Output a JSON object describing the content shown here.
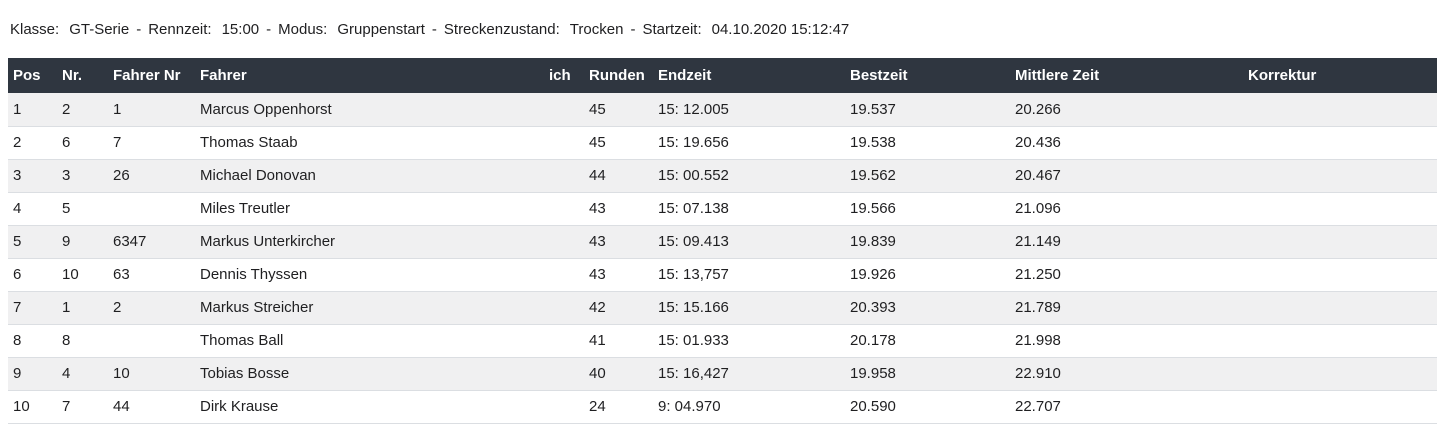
{
  "info": {
    "separator": "-",
    "items": [
      {
        "label": "Klasse:",
        "value": "GT-Serie"
      },
      {
        "label": "Rennzeit:",
        "value": "15:00"
      },
      {
        "label": "Modus:",
        "value": "Gruppenstart"
      },
      {
        "label": "Streckenzustand:",
        "value": "Trocken"
      },
      {
        "label": "Startzeit:",
        "value": "04.10.2020 15:12:47"
      }
    ]
  },
  "table": {
    "columns": [
      {
        "key": "pos",
        "label": "Pos"
      },
      {
        "key": "nr",
        "label": "Nr."
      },
      {
        "key": "fahrer_nr",
        "label": "Fahrer Nr"
      },
      {
        "key": "fahrer",
        "label": "Fahrer"
      },
      {
        "key": "ich",
        "label": "ich"
      },
      {
        "key": "runden",
        "label": "Runden"
      },
      {
        "key": "endzeit",
        "label": "Endzeit"
      },
      {
        "key": "bestzeit",
        "label": "Bestzeit"
      },
      {
        "key": "mittlere_zeit",
        "label": "Mittlere Zeit"
      },
      {
        "key": "korrektur",
        "label": "Korrektur"
      }
    ],
    "rows": [
      {
        "pos": "1",
        "nr": "2",
        "fahrer_nr": "1",
        "fahrer": "Marcus Oppenhorst",
        "ich": "",
        "runden": "45",
        "endzeit": "15: 12.005",
        "bestzeit": "19.537",
        "mittlere_zeit": "20.266",
        "korrektur": ""
      },
      {
        "pos": "2",
        "nr": "6",
        "fahrer_nr": "7",
        "fahrer": "Thomas Staab",
        "ich": "",
        "runden": "45",
        "endzeit": "15: 19.656",
        "bestzeit": "19.538",
        "mittlere_zeit": "20.436",
        "korrektur": ""
      },
      {
        "pos": "3",
        "nr": "3",
        "fahrer_nr": "26",
        "fahrer": "Michael Donovan",
        "ich": "",
        "runden": "44",
        "endzeit": "15: 00.552",
        "bestzeit": "19.562",
        "mittlere_zeit": "20.467",
        "korrektur": ""
      },
      {
        "pos": "4",
        "nr": "5",
        "fahrer_nr": "",
        "fahrer": "Miles Treutler",
        "ich": "",
        "runden": "43",
        "endzeit": "15: 07.138",
        "bestzeit": "19.566",
        "mittlere_zeit": "21.096",
        "korrektur": ""
      },
      {
        "pos": "5",
        "nr": "9",
        "fahrer_nr": "6347",
        "fahrer": "Markus Unterkircher",
        "ich": "",
        "runden": "43",
        "endzeit": "15: 09.413",
        "bestzeit": "19.839",
        "mittlere_zeit": "21.149",
        "korrektur": ""
      },
      {
        "pos": "6",
        "nr": "10",
        "fahrer_nr": "63",
        "fahrer": "Dennis Thyssen",
        "ich": "",
        "runden": "43",
        "endzeit": "15: 13,757",
        "bestzeit": "19.926",
        "mittlere_zeit": "21.250",
        "korrektur": ""
      },
      {
        "pos": "7",
        "nr": "1",
        "fahrer_nr": "2",
        "fahrer": "Markus Streicher",
        "ich": "",
        "runden": "42",
        "endzeit": "15: 15.166",
        "bestzeit": "20.393",
        "mittlere_zeit": "21.789",
        "korrektur": ""
      },
      {
        "pos": "8",
        "nr": "8",
        "fahrer_nr": "",
        "fahrer": "Thomas Ball",
        "ich": "",
        "runden": "41",
        "endzeit": "15: 01.933",
        "bestzeit": "20.178",
        "mittlere_zeit": "21.998",
        "korrektur": ""
      },
      {
        "pos": "9",
        "nr": "4",
        "fahrer_nr": "10",
        "fahrer": "Tobias Bosse",
        "ich": "",
        "runden": "40",
        "endzeit": "15: 16,427",
        "bestzeit": "19.958",
        "mittlere_zeit": "22.910",
        "korrektur": ""
      },
      {
        "pos": "10",
        "nr": "7",
        "fahrer_nr": "44",
        "fahrer": "Dirk Krause",
        "ich": "",
        "runden": "24",
        "endzeit": "9: 04.970",
        "bestzeit": "20.590",
        "mittlere_zeit": "22.707",
        "korrektur": ""
      }
    ]
  },
  "colors": {
    "header_bg": "#2f3640",
    "header_text": "#ffffff",
    "row_alt_bg": "#f0f0f1",
    "row_bg": "#ffffff",
    "row_border": "#dbdee2",
    "text": "#1f1f21"
  }
}
